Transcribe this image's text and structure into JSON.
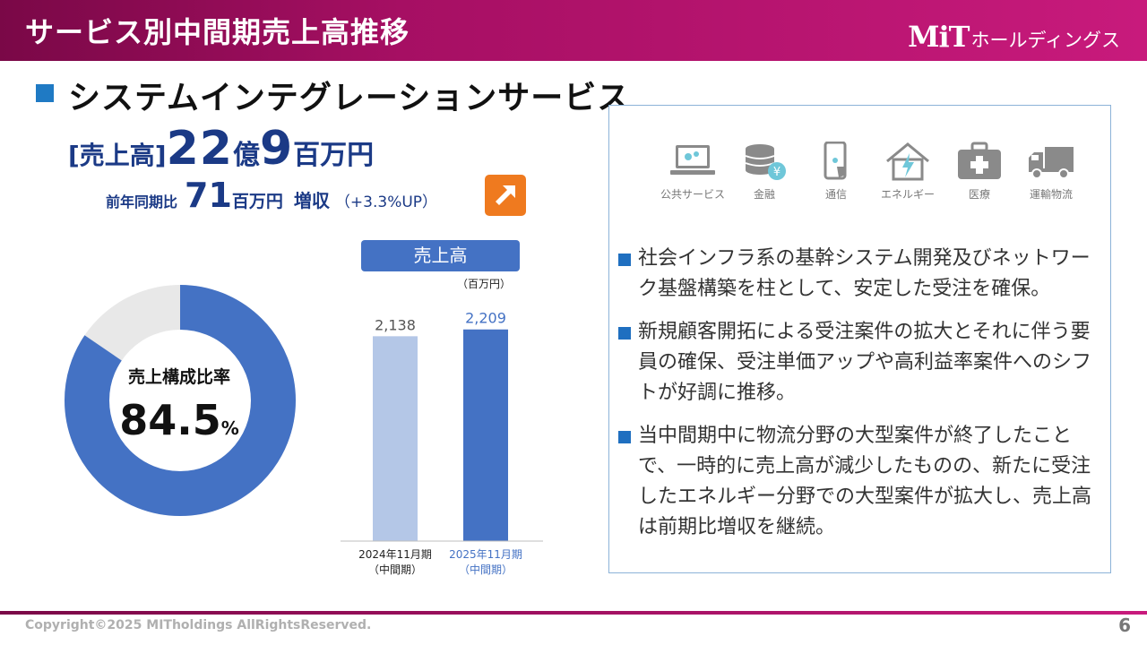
{
  "header": {
    "title": "サービス別中間期売上高推移",
    "logo_mark": "MiT",
    "logo_sub": "ホールディングス",
    "bg_color": "#a60f63"
  },
  "section": {
    "title": "システムインテグレーションサービス",
    "bullet_color": "#1f7ac4"
  },
  "sales": {
    "label": "[売上高]",
    "big1": "22",
    "unit1": "億",
    "big2": "9",
    "unit2": "百万円",
    "color": "#1b3a86"
  },
  "yoy": {
    "prefix": "前年同期比",
    "value": "71",
    "unit": "百万円",
    "growth": "増収",
    "pct": "（+3.3%UP）",
    "badge_icon": "arrow-up-right-icon",
    "badge_color": "#ef7a1f"
  },
  "donut": {
    "label": "売上構成比率",
    "value": "84.5",
    "unit": "%",
    "share": 0.845,
    "color_main": "#4472c4",
    "color_rest": "#e8e8e8"
  },
  "chart_data": {
    "type": "bar",
    "title": "売上高",
    "unit_label": "（百万円）",
    "categories": [
      "2024年11月期\n（中間期）",
      "2025年11月期\n（中間期）"
    ],
    "category_line1": [
      "2024年11月期",
      "2025年11月期"
    ],
    "category_line2": [
      "（中間期）",
      "（中間期）"
    ],
    "values": [
      2138,
      2209
    ],
    "value_labels": [
      "2,138",
      "2,209"
    ],
    "colors": [
      "#b4c7e7",
      "#4472c4"
    ],
    "label_colors": [
      "#555555",
      "#4472c4"
    ],
    "ylim": [
      0,
      2400
    ]
  },
  "industries": [
    {
      "label": "公共サービス",
      "icon": "laptop-gears-icon"
    },
    {
      "label": "金融",
      "icon": "coins-yen-icon"
    },
    {
      "label": "通信",
      "icon": "smartphone-icon"
    },
    {
      "label": "エネルギー",
      "icon": "house-lightning-icon"
    },
    {
      "label": "医療",
      "icon": "medical-kit-icon"
    },
    {
      "label": "運輸物流",
      "icon": "truck-icon"
    }
  ],
  "bullets": [
    "社会インフラ系の基幹システム開発及びネットワーク基盤構築を柱として、安定した受注を確保。",
    "新規顧客開拓による受注案件の拡大とそれに伴う要員の確保、受注単価アップや高利益率案件へのシフトが好調に推移。",
    "当中間期中に物流分野の大型案件が終了したことで、一時的に売上高が減少したものの、新たに受注したエネルギー分野での大型案件が拡大し、売上高は前期比増収を継続。"
  ],
  "footer": {
    "copyright": "Copyright©2025 MITholdings AllRightsReserved.",
    "page": "6"
  }
}
